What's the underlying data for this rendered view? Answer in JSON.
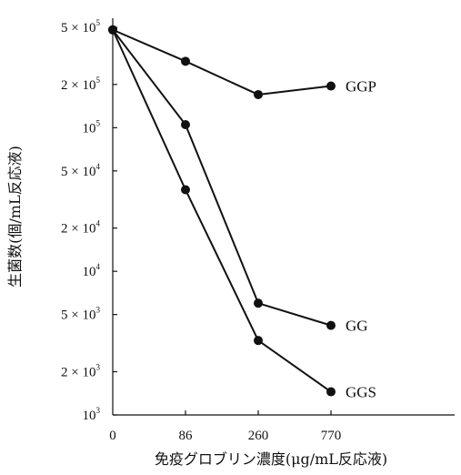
{
  "chart_data": {
    "type": "line",
    "xlabel": "免疫グロブリン濃度(μg/mL反応液)",
    "ylabel": "生菌数(個/mL反応液)",
    "x_categories": [
      "0",
      "86",
      "260",
      "770"
    ],
    "y_scale": "log",
    "ylim": [
      1000,
      500000
    ],
    "y_ticks": [
      {
        "value": 500000,
        "mantissa": "5 × 10",
        "exp": "5"
      },
      {
        "value": 200000,
        "mantissa": "2 × 10",
        "exp": "5"
      },
      {
        "value": 100000,
        "mantissa": "10",
        "exp": "5"
      },
      {
        "value": 50000,
        "mantissa": "5 × 10",
        "exp": "4"
      },
      {
        "value": 20000,
        "mantissa": "2 × 10",
        "exp": "4"
      },
      {
        "value": 10000,
        "mantissa": "10",
        "exp": "4"
      },
      {
        "value": 5000,
        "mantissa": "5 × 10",
        "exp": "3"
      },
      {
        "value": 2000,
        "mantissa": "2 × 10",
        "exp": "3"
      },
      {
        "value": 1000,
        "mantissa": "10",
        "exp": "3"
      }
    ],
    "series": [
      {
        "name": "GGP",
        "values": [
          480000,
          290000,
          170000,
          195000
        ]
      },
      {
        "name": "GG",
        "values": [
          480000,
          105000,
          6000,
          4200
        ]
      },
      {
        "name": "GGS",
        "values": [
          480000,
          37000,
          3300,
          1450
        ]
      }
    ],
    "grid": false,
    "legend": "inline labels at line ends"
  }
}
